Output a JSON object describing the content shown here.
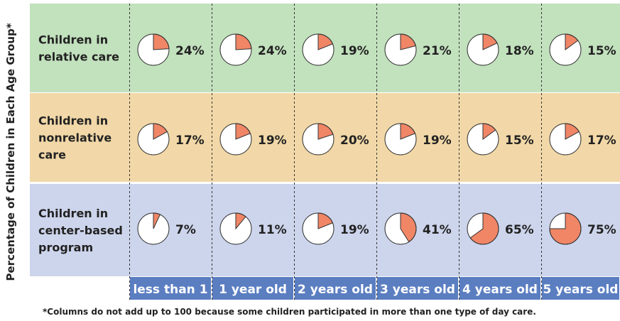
{
  "chart_data": {
    "type": "pie",
    "ylabel": "Percentage of Children in Each Age Group*",
    "categories": [
      "less than 1",
      "1 year old",
      "2 years old",
      "3 years old",
      "4 years old",
      "5 years old"
    ],
    "series": [
      {
        "name": "Children in relative care",
        "values": [
          24,
          24,
          19,
          21,
          18,
          15
        ],
        "labels": [
          "24%",
          "24%",
          "19%",
          "21%",
          "18%",
          "15%"
        ]
      },
      {
        "name": "Children in nonrelative care",
        "values": [
          17,
          19,
          20,
          19,
          15,
          17
        ],
        "labels": [
          "17%",
          "19%",
          "20%",
          "19%",
          "15%",
          "17%"
        ]
      },
      {
        "name": "Children in center-based program",
        "values": [
          7,
          11,
          19,
          41,
          65,
          75
        ],
        "labels": [
          "7%",
          "11%",
          "19%",
          "41%",
          "65%",
          "75%"
        ]
      }
    ],
    "row_titles": [
      [
        "Children in",
        "relative care"
      ],
      [
        "Children in",
        "nonrelative",
        "care"
      ],
      [
        "Children in",
        "center-based",
        "program"
      ]
    ],
    "footnote": "*Columns do not add up to 100 because some children participated in more than one type of day care."
  },
  "colors": {
    "row_backgrounds": [
      "#c2e1bd",
      "#f2d8a8",
      "#cdd5ec"
    ],
    "slice": "#f08666",
    "pie_fill": "#ffffff",
    "pie_stroke": "#333333",
    "header_bg": "#5b7ec1",
    "header_text": "#ffffff",
    "text": "#222222"
  }
}
